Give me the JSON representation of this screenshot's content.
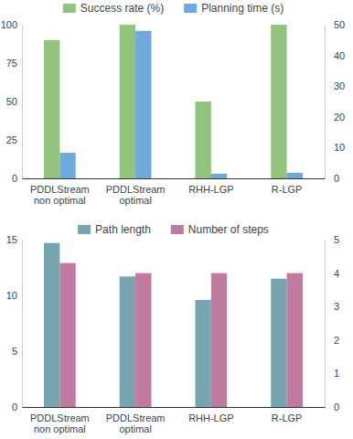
{
  "chart_data": [
    {
      "type": "bar",
      "categories": [
        "PDDLStream non optimal",
        "PDDLStream optimal",
        "RHH-LGP",
        "R-LGP"
      ],
      "series": [
        {
          "name": "Success rate (%)",
          "color": "#93c47d",
          "values": [
            90,
            100,
            50,
            100
          ]
        },
        {
          "name": "Planning time (s)",
          "color": "#6fa8dc",
          "values": [
            8.3,
            48,
            1.5,
            1.8
          ],
          "axis": "y2"
        }
      ],
      "ylim": [
        0,
        100
      ],
      "yticks": [
        0,
        25,
        50,
        75,
        100
      ],
      "y2lim": [
        0,
        50
      ],
      "y2ticks": [
        0,
        10,
        20,
        30,
        40,
        50
      ],
      "legend": "top",
      "grid": false
    },
    {
      "type": "bar",
      "categories": [
        "PDDLStream non optimal",
        "PDDLStream optimal",
        "RHH-LGP",
        "R-LGP"
      ],
      "series": [
        {
          "name": "Path length",
          "color": "#76a5af",
          "values": [
            14.7,
            11.7,
            9.6,
            11.5
          ]
        },
        {
          "name": "Number of steps",
          "color": "#c27ba0",
          "values": [
            4.3,
            4,
            4,
            4
          ],
          "axis": "y2"
        }
      ],
      "ylim": [
        0,
        15
      ],
      "yticks": [
        0,
        5,
        10,
        15
      ],
      "y2lim": [
        0,
        5
      ],
      "y2ticks": [
        0,
        1,
        2,
        3,
        4,
        5
      ],
      "legend": "top",
      "grid": false
    }
  ]
}
